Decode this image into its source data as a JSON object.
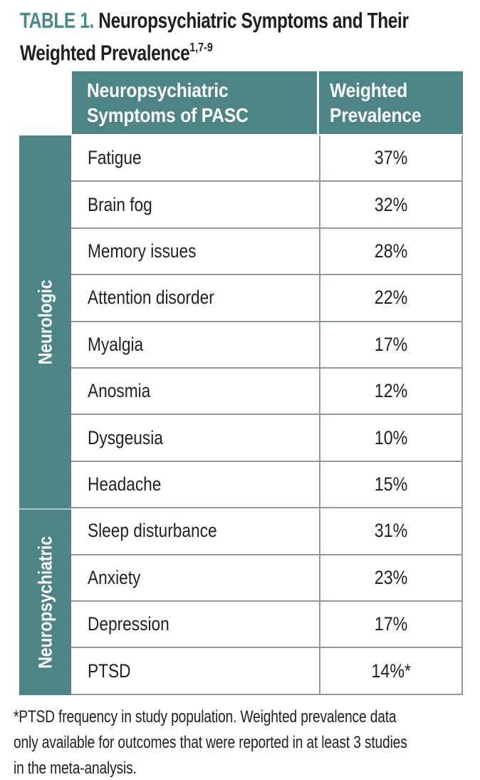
{
  "title": {
    "tag": "TABLE 1.",
    "line1": "Neuropsychiatric Symptoms and Their",
    "line2": "Weighted Prevalence",
    "reference_superscript": "1,7-9"
  },
  "table": {
    "header": {
      "col1": "Neuropsychiatric Symptoms of PASC",
      "col2": "Weighted Prevalence"
    },
    "groups": [
      {
        "label": "Neurologic",
        "row_span": 8
      },
      {
        "label": "Neuropsychiatric",
        "row_span": 4
      }
    ],
    "rows": [
      {
        "group": "Neurologic",
        "symptom": "Fatigue",
        "prevalence": "37%"
      },
      {
        "group": "Neurologic",
        "symptom": "Brain fog",
        "prevalence": "32%"
      },
      {
        "group": "Neurologic",
        "symptom": "Memory issues",
        "prevalence": "28%"
      },
      {
        "group": "Neurologic",
        "symptom": "Attention disorder",
        "prevalence": "22%"
      },
      {
        "group": "Neurologic",
        "symptom": "Myalgia",
        "prevalence": "17%"
      },
      {
        "group": "Neurologic",
        "symptom": "Anosmia",
        "prevalence": "12%"
      },
      {
        "group": "Neurologic",
        "symptom": "Dysgeusia",
        "prevalence": "10%"
      },
      {
        "group": "Neurologic",
        "symptom": "Headache",
        "prevalence": "15%"
      },
      {
        "group": "Neuropsychiatric",
        "symptom": "Sleep disturbance",
        "prevalence": "31%"
      },
      {
        "group": "Neuropsychiatric",
        "symptom": "Anxiety",
        "prevalence": "23%"
      },
      {
        "group": "Neuropsychiatric",
        "symptom": "Depression",
        "prevalence": "17%"
      },
      {
        "group": "Neuropsychiatric",
        "symptom": "PTSD",
        "prevalence": "14%*"
      }
    ]
  },
  "footnote": {
    "lines": [
      "*PTSD frequency in study population. Weighted prevalence data",
      "only available for outcomes that were reported in at least 3 studies",
      "in the meta-analysis."
    ]
  },
  "colors": {
    "teal": "#4D8486",
    "title_teal": "#49898C",
    "row_border": "#8D9D95",
    "text": "#231F20",
    "header_text": "#FFFFFF"
  }
}
